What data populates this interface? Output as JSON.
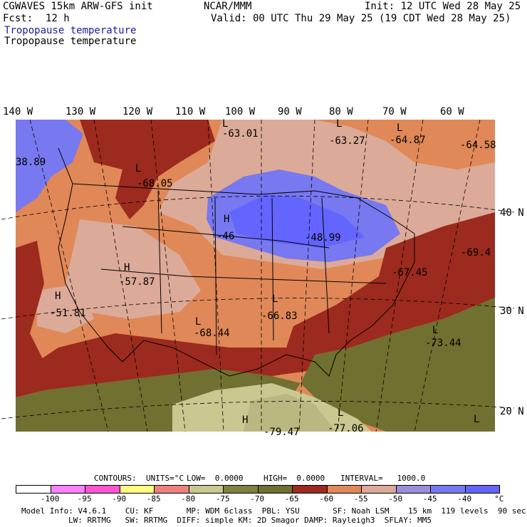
{
  "header": {
    "model": "CGWAVES 15km ARW-GFS init",
    "org": "NCAR/MMM",
    "init": "Init: 12 UTC Wed 28 May 25",
    "fcst_label": "Fcst:",
    "fcst_value": "12 h",
    "valid": "Valid: 00 UTC Thu 29 May 25 (19 CDT Wed 28 May 25)",
    "field_title_1": "Tropopause temperature",
    "field_title_2": "Tropopause temperature"
  },
  "longitudes": [
    "140 W",
    "130 W",
    "120 W",
    "110 W",
    "100 W",
    "90 W",
    "80 W",
    "70 W",
    "60 W"
  ],
  "latitudes": [
    "40 N",
    "30 N",
    "20 N"
  ],
  "map_labels": [
    {
      "text": "L",
      "kind": "letter"
    },
    {
      "text": "-63.01",
      "kind": "value"
    },
    {
      "text": "L",
      "kind": "letter"
    },
    {
      "text": "-63.27",
      "kind": "value"
    },
    {
      "text": "L",
      "kind": "letter"
    },
    {
      "text": "-64.87",
      "kind": "value"
    },
    {
      "text": "-64.58",
      "kind": "value"
    },
    {
      "text": "38.89",
      "kind": "value"
    },
    {
      "text": "L",
      "kind": "letter"
    },
    {
      "text": "-68.05",
      "kind": "value"
    },
    {
      "text": "H",
      "kind": "letter"
    },
    {
      "text": "-46",
      "kind": "value"
    },
    {
      "text": "-48.99",
      "kind": "value"
    },
    {
      "text": "-69.4",
      "kind": "value"
    },
    {
      "text": "H",
      "kind": "letter"
    },
    {
      "text": "-57.87",
      "kind": "value"
    },
    {
      "text": "-67.45",
      "kind": "value"
    },
    {
      "text": "H",
      "kind": "letter"
    },
    {
      "text": "-51.81",
      "kind": "value"
    },
    {
      "text": "L",
      "kind": "letter"
    },
    {
      "text": "-66.83",
      "kind": "value"
    },
    {
      "text": "L",
      "kind": "letter"
    },
    {
      "text": "-68.44",
      "kind": "value"
    },
    {
      "text": "L",
      "kind": "letter"
    },
    {
      "text": "-73.44",
      "kind": "value"
    },
    {
      "text": "L",
      "kind": "letter"
    },
    {
      "text": "-77.06",
      "kind": "value"
    },
    {
      "text": "H",
      "kind": "letter"
    },
    {
      "text": "-79.47",
      "kind": "value"
    },
    {
      "text": "L",
      "kind": "letter"
    }
  ],
  "contours_line": {
    "label": "CONTOURS:",
    "units": "UNITS=°C",
    "low": "LOW=  0.0000",
    "high": "HIGH=  0.0000",
    "interval": "INTERVAL=   1000.0"
  },
  "colorbar": {
    "colors": [
      "#ffffff",
      "#ff80ff",
      "#ff55d0",
      "#ffff80",
      "#f08080",
      "#c8c890",
      "#808040",
      "#707030",
      "#9c2a1e",
      "#e08858",
      "#dcaa98",
      "#9a8ed8",
      "#7878f0",
      "#6464ff"
    ],
    "ticks": [
      "-100",
      "-95",
      "-90",
      "-85",
      "-80",
      "-75",
      "-70",
      "-65",
      "-60",
      "-55",
      "-50",
      "-45",
      "-40",
      "°C"
    ]
  },
  "footer": {
    "line1": "Model Info: V4.6.1    CU: KF       MP: WDM 6class  PBL: YSU       SF: Noah LSM    15 km  119 levels  90 sec",
    "line2": "LW: RRTMG   SW: RRTMG  DIFF: simple KM: 2D Smagor DAMP: Rayleigh3  SFLAY: MM5"
  }
}
